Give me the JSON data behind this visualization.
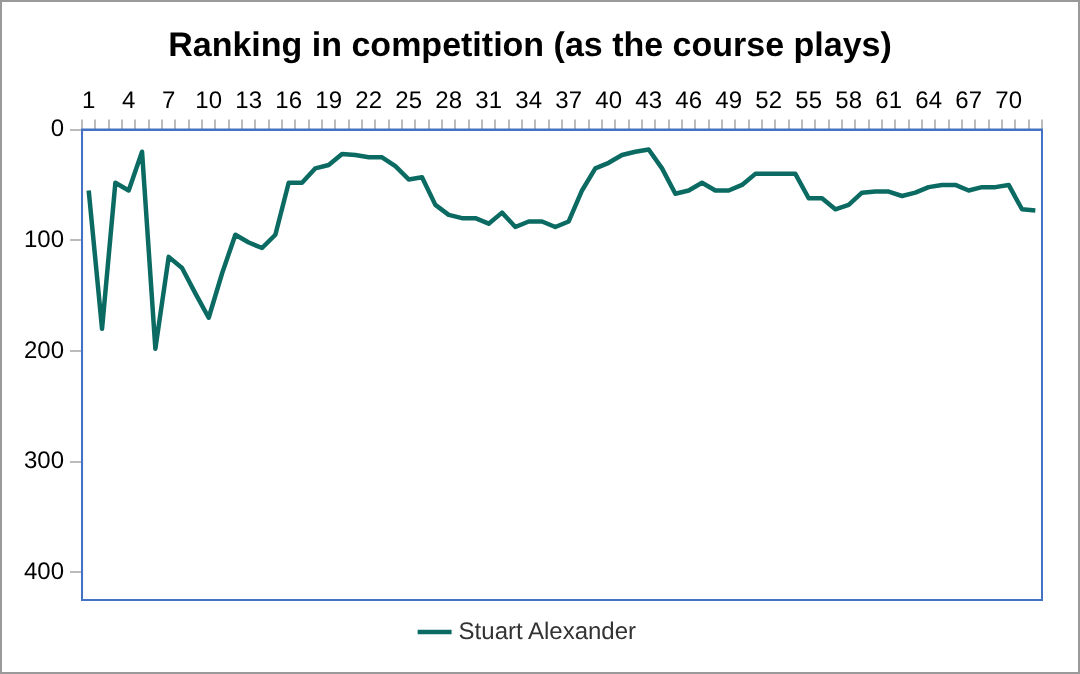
{
  "chart_data": {
    "type": "line",
    "title": "Ranking in competition (as the course plays)",
    "categories": [
      "1",
      null,
      null,
      "4",
      null,
      null,
      "7",
      null,
      null,
      "10",
      null,
      null,
      "13",
      null,
      null,
      "16",
      null,
      null,
      "19",
      null,
      null,
      "22",
      null,
      null,
      "25",
      null,
      null,
      "28",
      null,
      null,
      "31",
      null,
      null,
      "34",
      null,
      null,
      "37",
      null,
      null,
      "40",
      null,
      null,
      "43",
      null,
      null,
      "46",
      null,
      null,
      "49",
      null,
      null,
      "52",
      null,
      null,
      "55",
      null,
      null,
      "58",
      null,
      null,
      "61",
      null,
      null,
      "64",
      null,
      null,
      "67",
      null,
      null,
      "70",
      null,
      null
    ],
    "series": [
      {
        "name": "Stuart Alexander",
        "color": "#0b6b63",
        "values": [
          55,
          180,
          48,
          55,
          20,
          198,
          115,
          125,
          148,
          170,
          130,
          95,
          102,
          107,
          95,
          48,
          48,
          35,
          32,
          22,
          23,
          25,
          25,
          33,
          45,
          43,
          68,
          77,
          80,
          80,
          85,
          75,
          88,
          83,
          83,
          88,
          83,
          55,
          35,
          30,
          23,
          20,
          18,
          35,
          58,
          55,
          48,
          55,
          55,
          50,
          40,
          40,
          40,
          40,
          62,
          62,
          72,
          68,
          57,
          56,
          56,
          60,
          57,
          52,
          50,
          50,
          55,
          52,
          52,
          50,
          72,
          73
        ]
      }
    ],
    "ylim": [
      425,
      0
    ],
    "yticks": [
      0,
      100,
      200,
      300,
      400
    ],
    "grid": false,
    "legend": "bottom",
    "marker": "none",
    "line_style": "solid"
  }
}
